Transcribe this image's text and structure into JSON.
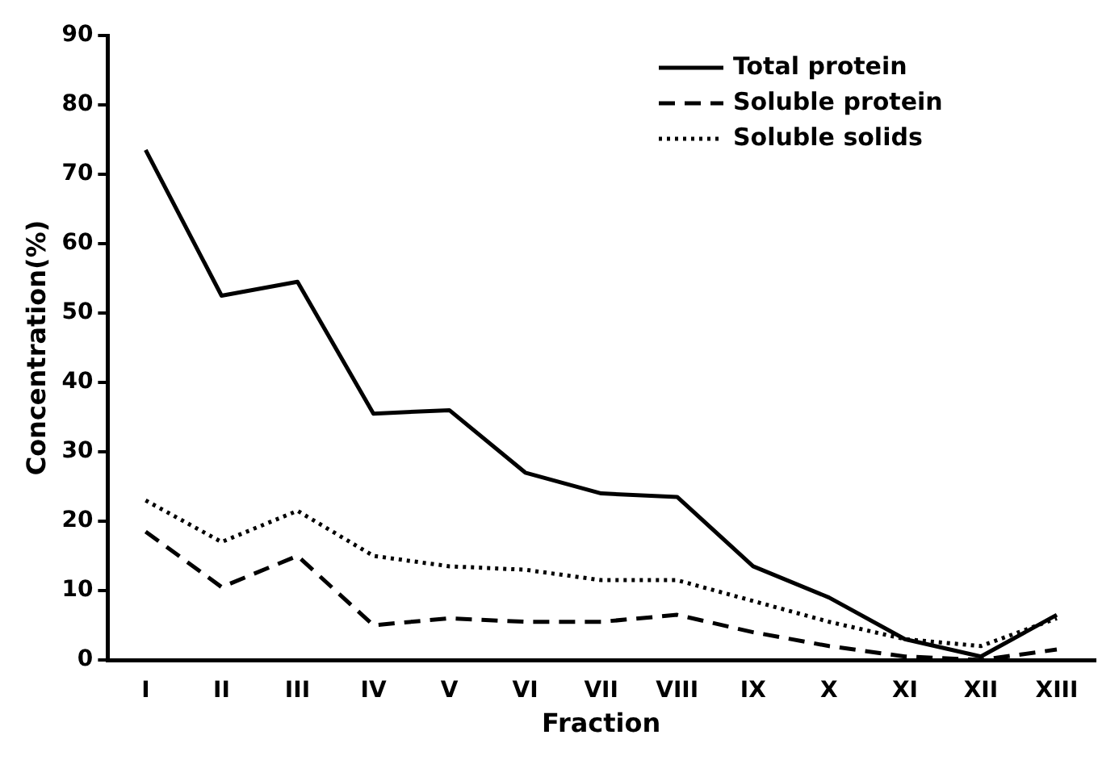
{
  "chart_data": {
    "type": "line",
    "xlabel": "Fraction",
    "ylabel": "Concentration(%)",
    "categories": [
      "I",
      "II",
      "III",
      "IV",
      "V",
      "VI",
      "VII",
      "VIII",
      "IX",
      "X",
      "XI",
      "XII",
      "XIII"
    ],
    "series": [
      {
        "name": "Total protein",
        "color": "#000000",
        "line_style": "solid",
        "values": [
          73.5,
          52.5,
          54.5,
          35.5,
          36,
          27,
          24,
          23.5,
          13.5,
          9,
          3,
          0.5,
          6.5
        ]
      },
      {
        "name": "Soluble protein",
        "color": "#000000",
        "line_style": "dashed",
        "values": [
          18.5,
          10.5,
          15,
          5,
          6,
          5.5,
          5.5,
          6.5,
          4,
          2,
          0.5,
          0,
          1.5
        ]
      },
      {
        "name": "Soluble solids",
        "color": "#000000",
        "line_style": "dotted",
        "values": [
          23,
          17,
          21.5,
          15,
          13.5,
          13,
          11.5,
          11.5,
          8.5,
          5.5,
          3,
          2,
          6
        ]
      }
    ],
    "ylim": [
      0,
      90
    ],
    "yticks": [
      0,
      10,
      20,
      30,
      40,
      50,
      60,
      70,
      80,
      90
    ],
    "grid": false,
    "legend": "top right",
    "marker": "none"
  }
}
